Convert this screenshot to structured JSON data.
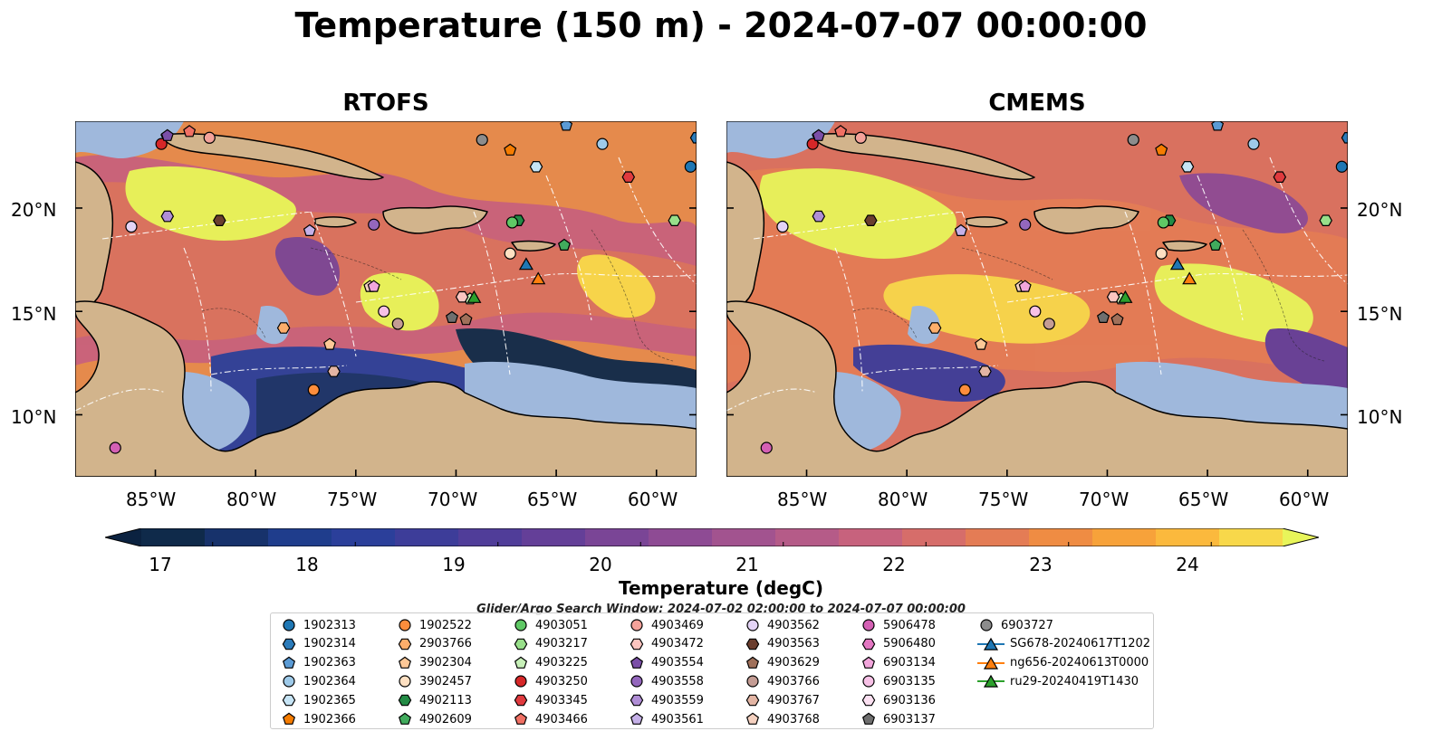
{
  "title": "Temperature (150 m) - 2024-07-07 00:00:00",
  "panels": [
    {
      "title": "RTOFS"
    },
    {
      "title": "CMEMS"
    }
  ],
  "axes": {
    "lat_labels": [
      "20°N",
      "15°N",
      "10°N"
    ],
    "lat_values": [
      20,
      15,
      10
    ],
    "lon_labels": [
      "85°W",
      "80°W",
      "75°W",
      "70°W",
      "65°W",
      "60°W"
    ],
    "lon_values": [
      -85,
      -80,
      -75,
      -70,
      -65,
      -60
    ],
    "lon_range": [
      -89,
      -58
    ],
    "lat_range": [
      7,
      24.2
    ]
  },
  "colorbar": {
    "label": "Temperature (degC)",
    "ticks": [
      "17",
      "18",
      "19",
      "20",
      "21",
      "22",
      "23",
      "24"
    ],
    "tick_values": [
      17,
      18,
      19,
      20,
      21,
      22,
      23,
      24
    ],
    "range": [
      16.5,
      24.5
    ],
    "colors": [
      "#0f2a4a",
      "#17326b",
      "#1f3d8c",
      "#2b3f9a",
      "#3d3d99",
      "#503d99",
      "#643f98",
      "#7a4596",
      "#8e4b94",
      "#a2538f",
      "#b55b88",
      "#c7627d",
      "#d66d6a",
      "#e47c55",
      "#ef8c43",
      "#f7a23a",
      "#fbb93d",
      "#f8d84a"
    ],
    "low_color": "#0b2240",
    "high_color": "#e8f55a"
  },
  "search_window": "Glider/Argo Search Window: 2024-07-02 02:00:00 to 2024-07-07 00:00:00",
  "legend": {
    "items": [
      {
        "label": "1902313",
        "shape": "circle",
        "color": "#1f77b4"
      },
      {
        "label": "1902314",
        "shape": "hexagon",
        "color": "#2b7bba"
      },
      {
        "label": "1902363",
        "shape": "pentagon",
        "color": "#5b9bd5"
      },
      {
        "label": "1902364",
        "shape": "circle",
        "color": "#9ecae9"
      },
      {
        "label": "1902365",
        "shape": "hexagon",
        "color": "#c6e4f5"
      },
      {
        "label": "1902366",
        "shape": "pentagon",
        "color": "#f57c00"
      },
      {
        "label": "1902522",
        "shape": "circle",
        "color": "#fd8d3c"
      },
      {
        "label": "2903766",
        "shape": "hexagon",
        "color": "#fdae6b"
      },
      {
        "label": "3902304",
        "shape": "pentagon",
        "color": "#fdc897"
      },
      {
        "label": "3902457",
        "shape": "circle",
        "color": "#fee0c2"
      },
      {
        "label": "4902113",
        "shape": "hexagon",
        "color": "#238b45"
      },
      {
        "label": "4902609",
        "shape": "pentagon",
        "color": "#41ab5d"
      },
      {
        "label": "4903051",
        "shape": "circle",
        "color": "#5fc865"
      },
      {
        "label": "4903217",
        "shape": "hexagon",
        "color": "#98df8a"
      },
      {
        "label": "4903225",
        "shape": "pentagon",
        "color": "#c7f0b8"
      },
      {
        "label": "4903250",
        "shape": "circle",
        "color": "#d62728"
      },
      {
        "label": "4903345",
        "shape": "hexagon",
        "color": "#e03a3e"
      },
      {
        "label": "4903466",
        "shape": "pentagon",
        "color": "#f07064"
      },
      {
        "label": "4903469",
        "shape": "circle",
        "color": "#f4a29a"
      },
      {
        "label": "4903472",
        "shape": "hexagon",
        "color": "#fcc5c0"
      },
      {
        "label": "4903554",
        "shape": "pentagon",
        "color": "#7b4fa8"
      },
      {
        "label": "4903558",
        "shape": "circle",
        "color": "#9467bd"
      },
      {
        "label": "4903559",
        "shape": "hexagon",
        "color": "#b08ed6"
      },
      {
        "label": "4903561",
        "shape": "pentagon",
        "color": "#c5b0e8"
      },
      {
        "label": "4903562",
        "shape": "circle",
        "color": "#e3d3f5"
      },
      {
        "label": "4903563",
        "shape": "hexagon",
        "color": "#6b3e2e"
      },
      {
        "label": "4903629",
        "shape": "pentagon",
        "color": "#a0705a"
      },
      {
        "label": "4903766",
        "shape": "circle",
        "color": "#c49c94"
      },
      {
        "label": "4903767",
        "shape": "hexagon",
        "color": "#e3b5a4"
      },
      {
        "label": "4903768",
        "shape": "pentagon",
        "color": "#f5d1c0"
      },
      {
        "label": "5906478",
        "shape": "circle",
        "color": "#d460b4"
      },
      {
        "label": "5906480",
        "shape": "hexagon",
        "color": "#e377c2"
      },
      {
        "label": "6903134",
        "shape": "pentagon",
        "color": "#f2a6dc"
      },
      {
        "label": "6903135",
        "shape": "circle",
        "color": "#f7c1e6"
      },
      {
        "label": "6903136",
        "shape": "hexagon",
        "color": "#fbe0f1"
      },
      {
        "label": "6903137",
        "shape": "pentagon",
        "color": "#6f6f6f"
      },
      {
        "label": "6903727",
        "shape": "circle",
        "color": "#8c8c8c"
      },
      {
        "label": "SG678-20240617T1202",
        "shape": "triangle",
        "color": "#1f77b4",
        "line": true
      },
      {
        "label": "ng656-20240613T0000",
        "shape": "triangle",
        "color": "#ff7f0e",
        "line": true
      },
      {
        "label": "ru29-20240419T1430",
        "shape": "triangle",
        "color": "#2ca02c",
        "line": true
      }
    ]
  },
  "markers": [
    {
      "id": "1902313",
      "shape": "circle",
      "color": "#1f77b4",
      "lon": -58.3,
      "lat": 22.0
    },
    {
      "id": "1902314",
      "shape": "hexagon",
      "color": "#2b7bba",
      "lon": -58.0,
      "lat": 23.4
    },
    {
      "id": "1902363",
      "shape": "pentagon",
      "color": "#5b9bd5",
      "lon": -64.5,
      "lat": 24.0
    },
    {
      "id": "1902364",
      "shape": "circle",
      "color": "#9ecae9",
      "lon": -62.7,
      "lat": 23.1
    },
    {
      "id": "1902365",
      "shape": "hexagon",
      "color": "#c6e4f5",
      "lon": -66.0,
      "lat": 22.0
    },
    {
      "id": "1902366",
      "shape": "pentagon",
      "color": "#f57c00",
      "lon": -67.3,
      "lat": 22.8
    },
    {
      "id": "1902522",
      "shape": "circle",
      "color": "#fd8d3c",
      "lon": -77.1,
      "lat": 11.2
    },
    {
      "id": "2903766",
      "shape": "hexagon",
      "color": "#fdae6b",
      "lon": -78.6,
      "lat": 14.2
    },
    {
      "id": "3902304",
      "shape": "pentagon",
      "color": "#fdc897",
      "lon": -76.3,
      "lat": 13.4
    },
    {
      "id": "3902457",
      "shape": "circle",
      "color": "#fee0c2",
      "lon": -67.3,
      "lat": 17.8
    },
    {
      "id": "4902113",
      "shape": "hexagon",
      "color": "#238b45",
      "lon": -66.9,
      "lat": 19.4
    },
    {
      "id": "4902609",
      "shape": "pentagon",
      "color": "#41ab5d",
      "lon": -64.6,
      "lat": 18.2
    },
    {
      "id": "4903051",
      "shape": "circle",
      "color": "#5fc865",
      "lon": -67.2,
      "lat": 19.3
    },
    {
      "id": "4903217",
      "shape": "hexagon",
      "color": "#98df8a",
      "lon": -59.1,
      "lat": 19.4
    },
    {
      "id": "4903225",
      "shape": "pentagon",
      "color": "#c7f0b8",
      "lon": -69.3,
      "lat": 15.6
    },
    {
      "id": "4903250",
      "shape": "circle",
      "color": "#d62728",
      "lon": -84.7,
      "lat": 23.1
    },
    {
      "id": "4903345",
      "shape": "hexagon",
      "color": "#e03a3e",
      "lon": -61.4,
      "lat": 21.5
    },
    {
      "id": "4903466",
      "shape": "pentagon",
      "color": "#f07064",
      "lon": -83.3,
      "lat": 23.7
    },
    {
      "id": "4903469",
      "shape": "circle",
      "color": "#f4a29a",
      "lon": -82.3,
      "lat": 23.4
    },
    {
      "id": "4903472",
      "shape": "hexagon",
      "color": "#fcc5c0",
      "lon": -69.7,
      "lat": 15.7
    },
    {
      "id": "4903554",
      "shape": "pentagon",
      "color": "#7b4fa8",
      "lon": -84.4,
      "lat": 23.5
    },
    {
      "id": "4903558",
      "shape": "circle",
      "color": "#9467bd",
      "lon": -74.1,
      "lat": 19.2
    },
    {
      "id": "4903559",
      "shape": "hexagon",
      "color": "#b08ed6",
      "lon": -84.4,
      "lat": 19.6
    },
    {
      "id": "4903561",
      "shape": "pentagon",
      "color": "#c5b0e8",
      "lon": -77.3,
      "lat": 18.9
    },
    {
      "id": "4903562",
      "shape": "circle",
      "color": "#e3d3f5",
      "lon": -86.2,
      "lat": 19.1
    },
    {
      "id": "4903563",
      "shape": "hexagon",
      "color": "#6b3e2e",
      "lon": -81.8,
      "lat": 19.4
    },
    {
      "id": "4903629",
      "shape": "pentagon",
      "color": "#a0705a",
      "lon": -69.5,
      "lat": 14.6
    },
    {
      "id": "4903766",
      "shape": "circle",
      "color": "#c49c94",
      "lon": -72.9,
      "lat": 14.4
    },
    {
      "id": "4903767",
      "shape": "hexagon",
      "color": "#e3b5a4",
      "lon": -76.1,
      "lat": 12.1
    },
    {
      "id": "4903768",
      "shape": "pentagon",
      "color": "#f5d1c0",
      "lon": -74.3,
      "lat": 16.2
    },
    {
      "id": "5906478",
      "shape": "circle",
      "color": "#d460b4",
      "lon": -87.0,
      "lat": 8.4
    },
    {
      "id": "6903134",
      "shape": "pentagon",
      "color": "#f2a6dc",
      "lon": -74.1,
      "lat": 16.2
    },
    {
      "id": "6903135",
      "shape": "circle",
      "color": "#f7c1e6",
      "lon": -73.6,
      "lat": 15.0
    },
    {
      "id": "6903137",
      "shape": "pentagon",
      "color": "#6f6f6f",
      "lon": -70.2,
      "lat": 14.7
    },
    {
      "id": "6903727",
      "shape": "circle",
      "color": "#8c8c8c",
      "lon": -68.7,
      "lat": 23.3
    },
    {
      "id": "SG678-20240617T1202",
      "shape": "triangle",
      "color": "#1f77b4",
      "lon": -66.5,
      "lat": 17.3
    },
    {
      "id": "ng656-20240613T0000",
      "shape": "triangle",
      "color": "#ff7f0e",
      "lon": -65.9,
      "lat": 16.6
    },
    {
      "id": "ru29-20240419T1430",
      "shape": "triangle",
      "color": "#2ca02c",
      "lon": -69.1,
      "lat": 15.7
    }
  ]
}
